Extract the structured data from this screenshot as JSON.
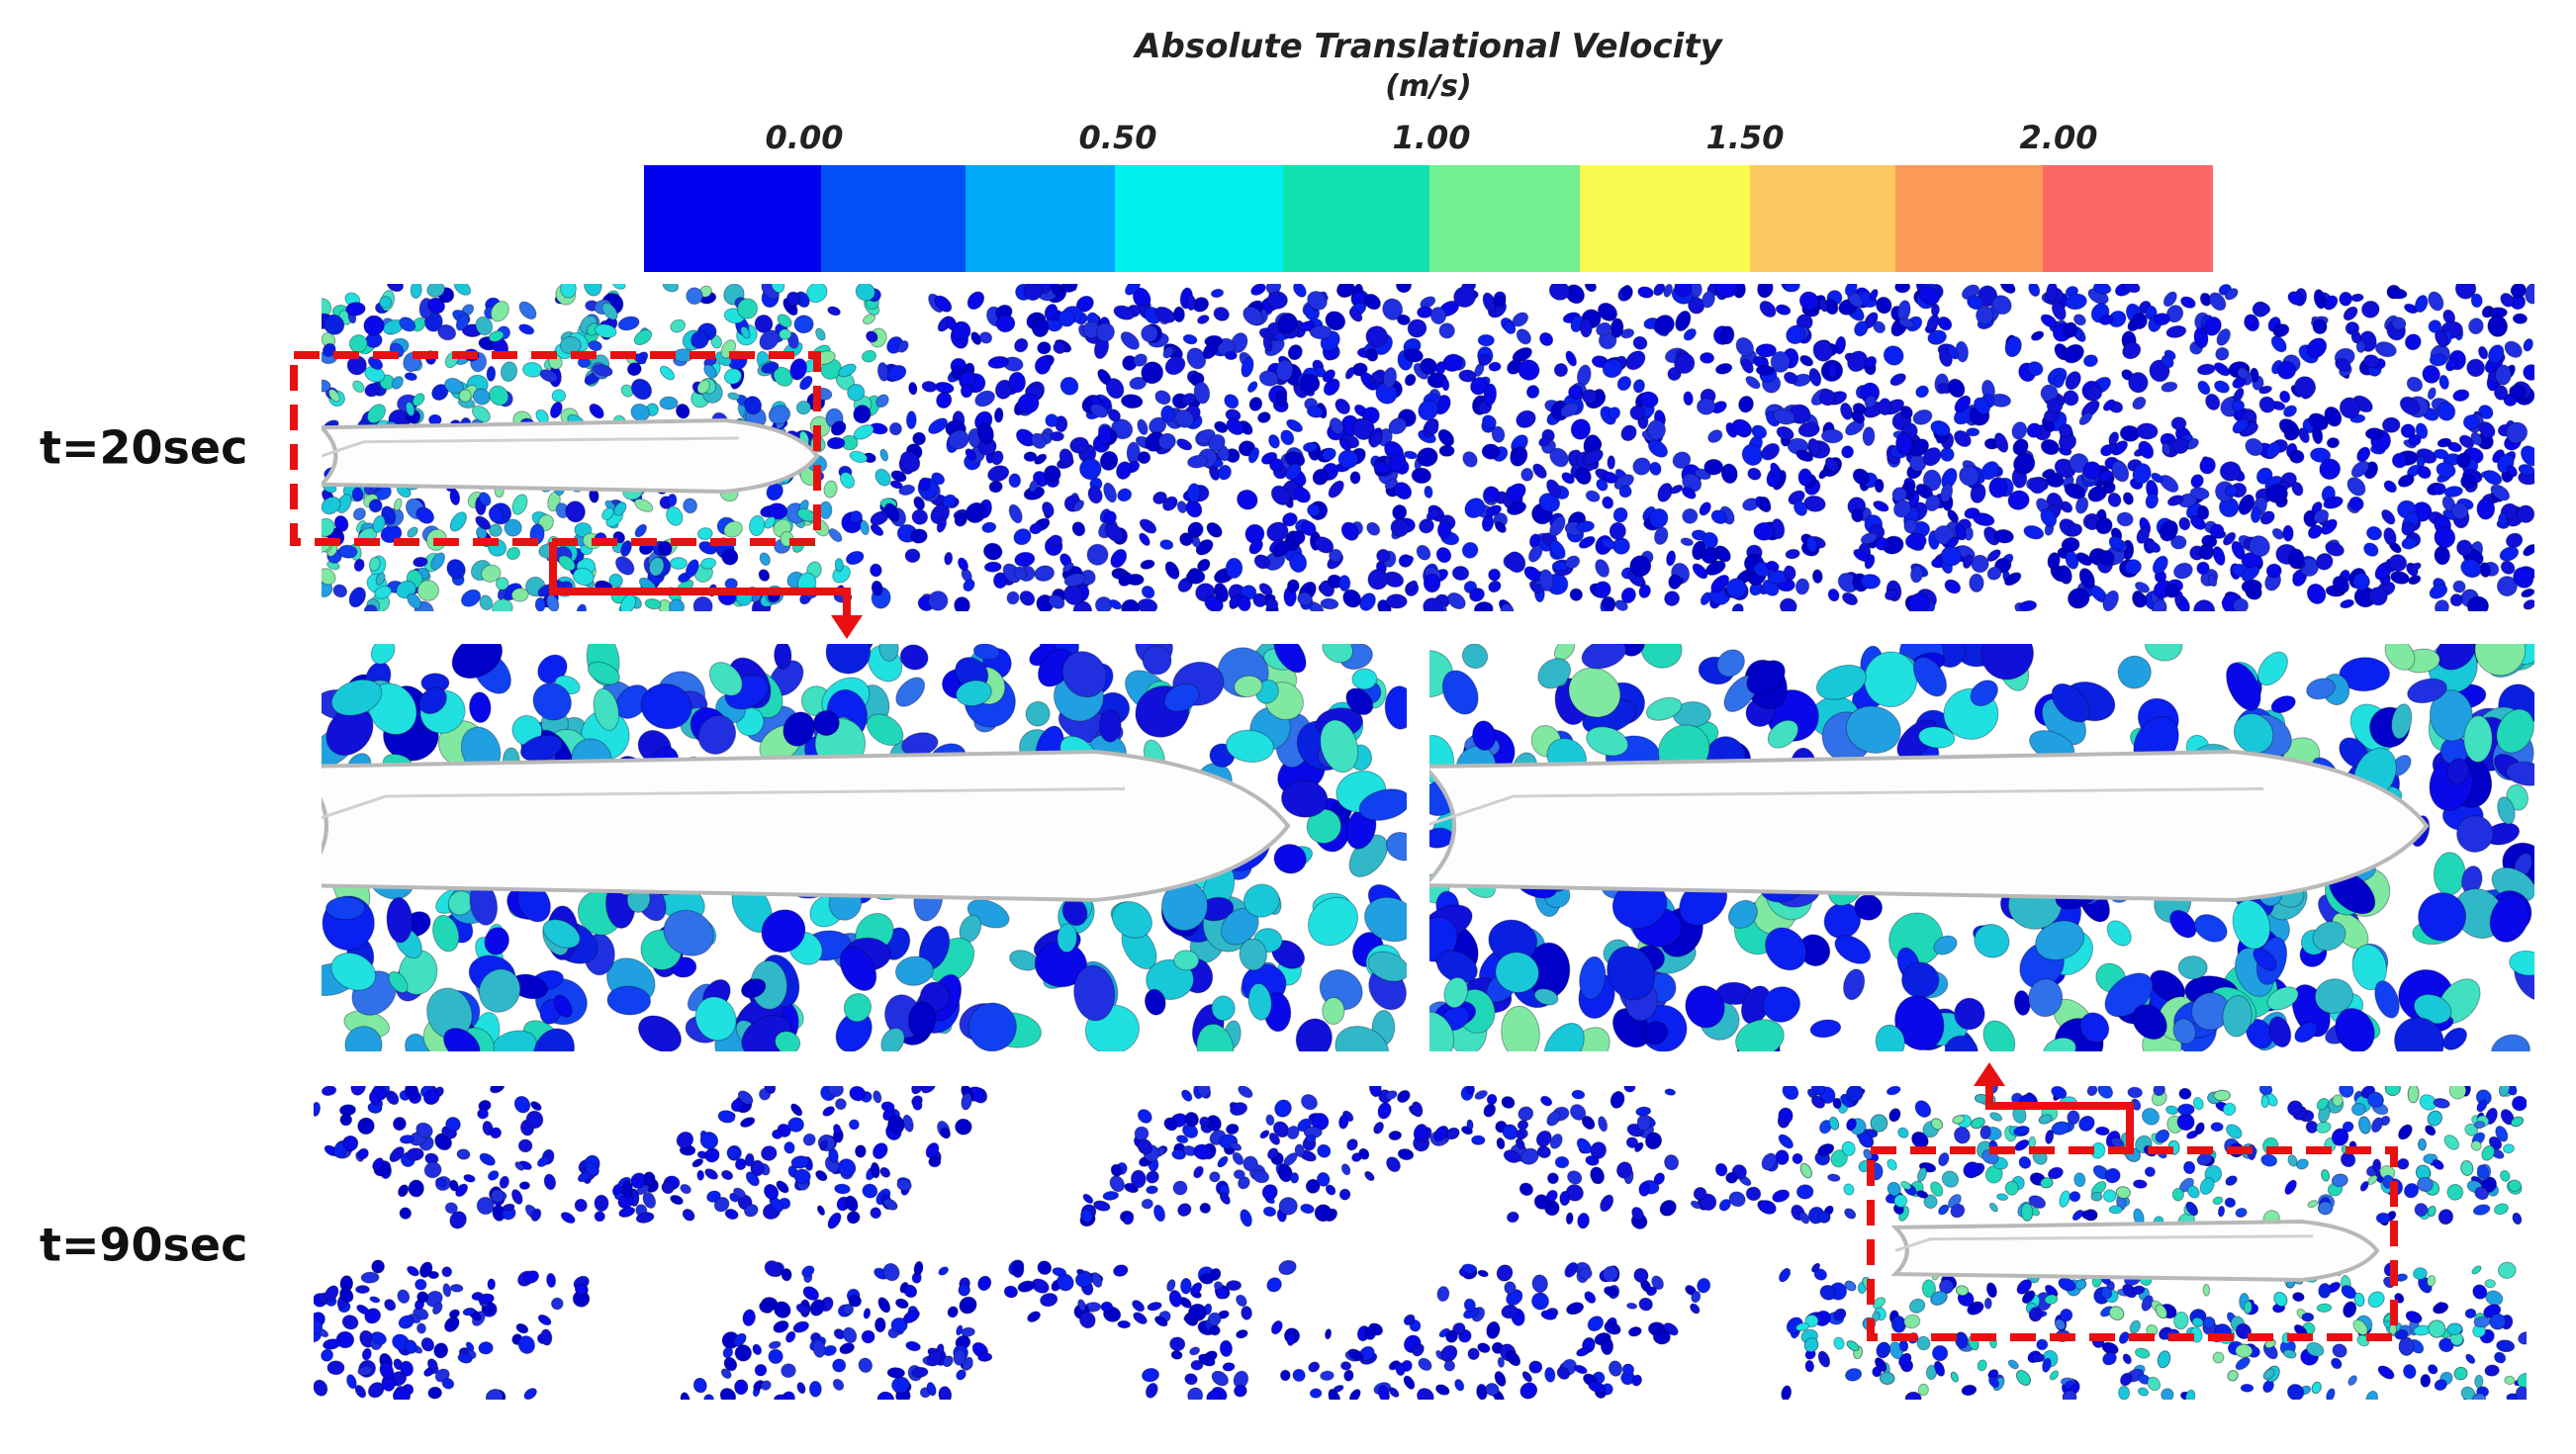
{
  "colorbar": {
    "title": "Absolute Translational Velocity",
    "unit": "(m/s)",
    "ticks": [
      "0.00",
      "0.50",
      "1.00",
      "1.50",
      "2.00"
    ]
  },
  "panels": [
    {
      "label": "t=20sec"
    },
    {
      "label": "t=90sec"
    }
  ]
}
